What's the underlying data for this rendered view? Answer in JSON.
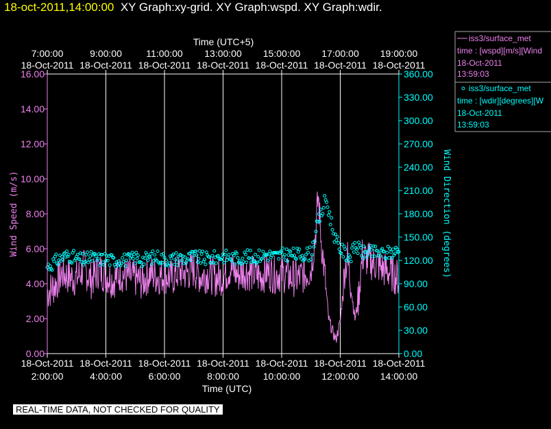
{
  "header": {
    "timestamp": "18-oct-2011,14:00:00",
    "graphs": "XY Graph:xy-grid.  XY Graph:wspd.  XY Graph:wdir."
  },
  "colors": {
    "wspd": "#ee82ee",
    "wdir": "#00ffff",
    "axis": "#ffffff",
    "timestamp": "#ffff00"
  },
  "footer": {
    "qc_notice": "REAL-TIME DATA, NOT CHECKED FOR QUALITY"
  },
  "legend": [
    {
      "marker": "line",
      "line1": "iss3/surface_met",
      "line2": "time : [wspd][m/s][Wind",
      "line3": "18-Oct-2011",
      "line4": "13:59:03"
    },
    {
      "marker": "circle",
      "line1": "iss3/surface_met",
      "line2": "time : [wdir][degrees][W",
      "line3": "18-Oct-2011",
      "line4": "13:59:03"
    }
  ],
  "chart_data": {
    "type": "line",
    "top_axis": {
      "label": "Time (UTC+5)",
      "ticks": [
        {
          "time": "7:00:00",
          "date": "18-Oct-2011"
        },
        {
          "time": "9:00:00",
          "date": "18-Oct-2011"
        },
        {
          "time": "11:00:00",
          "date": "18-Oct-2011"
        },
        {
          "time": "13:00:00",
          "date": "18-Oct-2011"
        },
        {
          "time": "15:00:00",
          "date": "18-Oct-2011"
        },
        {
          "time": "17:00:00",
          "date": "18-Oct-2011"
        },
        {
          "time": "19:00:00",
          "date": "18-Oct-2011"
        }
      ]
    },
    "bottom_axis": {
      "label": "Time (UTC)",
      "ticks": [
        {
          "date": "18-Oct-2011",
          "time": "2:00:00"
        },
        {
          "date": "18-Oct-2011",
          "time": "4:00:00"
        },
        {
          "date": "18-Oct-2011",
          "time": "6:00:00"
        },
        {
          "date": "18-Oct-2011",
          "time": "8:00:00"
        },
        {
          "date": "18-Oct-2011",
          "time": "10:00:00"
        },
        {
          "date": "18-Oct-2011",
          "time": "12:00:00"
        },
        {
          "date": "18-Oct-2011",
          "time": "14:00:00"
        }
      ],
      "range_hours_utc": [
        2,
        14
      ]
    },
    "y_left": {
      "label": "Wind Speed (m/s)",
      "range": [
        0,
        16
      ],
      "ticks": [
        "0.00",
        "2.00",
        "4.00",
        "6.00",
        "8.00",
        "10.00",
        "12.00",
        "14.00",
        "16.00"
      ]
    },
    "y_right": {
      "label": "Wind Direction (degrees)",
      "range": [
        0,
        360
      ],
      "ticks": [
        "0.00",
        "30.00",
        "60.00",
        "90.00",
        "120.00",
        "150.00",
        "180.00",
        "210.00",
        "240.00",
        "270.00",
        "300.00",
        "330.00",
        "360.00"
      ]
    },
    "grid": "vertical",
    "series": [
      {
        "name": "iss3/surface_met wspd",
        "axis": "left",
        "style": "line",
        "x_hours_utc": [
          2.0,
          2.25,
          2.5,
          2.75,
          3.0,
          3.25,
          3.5,
          3.75,
          4.0,
          4.25,
          4.5,
          4.75,
          5.0,
          5.25,
          5.5,
          5.75,
          6.0,
          6.25,
          6.5,
          6.75,
          7.0,
          7.25,
          7.5,
          7.75,
          8.0,
          8.25,
          8.5,
          8.75,
          9.0,
          9.25,
          9.5,
          9.75,
          10.0,
          10.25,
          10.5,
          10.75,
          11.0,
          11.15,
          11.25,
          11.35,
          11.5,
          11.6,
          11.75,
          11.85,
          12.0,
          12.15,
          12.25,
          12.35,
          12.5,
          12.6,
          12.75,
          13.0,
          13.25,
          13.5,
          13.75,
          14.0
        ],
        "values": [
          3.5,
          3.9,
          4.6,
          4.4,
          4.3,
          4.9,
          4.2,
          4.8,
          4.5,
          4.2,
          4.6,
          4.4,
          4.3,
          4.1,
          4.6,
          4.4,
          4.5,
          4.3,
          4.7,
          4.6,
          4.8,
          4.4,
          4.6,
          4.3,
          4.4,
          4.9,
          4.5,
          4.7,
          4.6,
          4.4,
          4.7,
          4.5,
          4.6,
          4.4,
          4.3,
          4.5,
          4.8,
          6.8,
          9.0,
          6.5,
          4.0,
          2.0,
          1.2,
          0.8,
          1.8,
          4.8,
          5.5,
          4.0,
          2.0,
          2.8,
          5.6,
          5.3,
          5.1,
          4.8,
          4.6,
          4.3
        ]
      },
      {
        "name": "iss3/surface_met wdir",
        "axis": "right",
        "style": "circles",
        "x_hours_utc": [
          2.0,
          2.25,
          2.5,
          2.75,
          3.0,
          3.25,
          3.5,
          3.75,
          4.0,
          4.25,
          4.5,
          4.75,
          5.0,
          5.25,
          5.5,
          5.75,
          6.0,
          6.25,
          6.5,
          6.75,
          7.0,
          7.25,
          7.5,
          7.75,
          8.0,
          8.25,
          8.5,
          8.75,
          9.0,
          9.25,
          9.5,
          9.75,
          10.0,
          10.25,
          10.5,
          10.75,
          11.0,
          11.1,
          11.25,
          11.4,
          11.5,
          11.6,
          11.75,
          11.85,
          12.0,
          12.15,
          12.25,
          12.4,
          12.5,
          12.75,
          13.0,
          13.25,
          13.5,
          13.75,
          14.0
        ],
        "values": [
          112,
          118,
          124,
          127,
          122,
          120,
          124,
          121,
          123,
          119,
          122,
          120,
          124,
          121,
          123,
          125,
          122,
          121,
          124,
          122,
          125,
          123,
          122,
          124,
          126,
          124,
          123,
          125,
          124,
          126,
          128,
          125,
          127,
          128,
          127,
          128,
          129,
          145,
          170,
          185,
          200,
          185,
          160,
          145,
          135,
          130,
          125,
          128,
          140,
          130,
          130,
          130,
          128,
          131,
          132
        ]
      }
    ]
  }
}
